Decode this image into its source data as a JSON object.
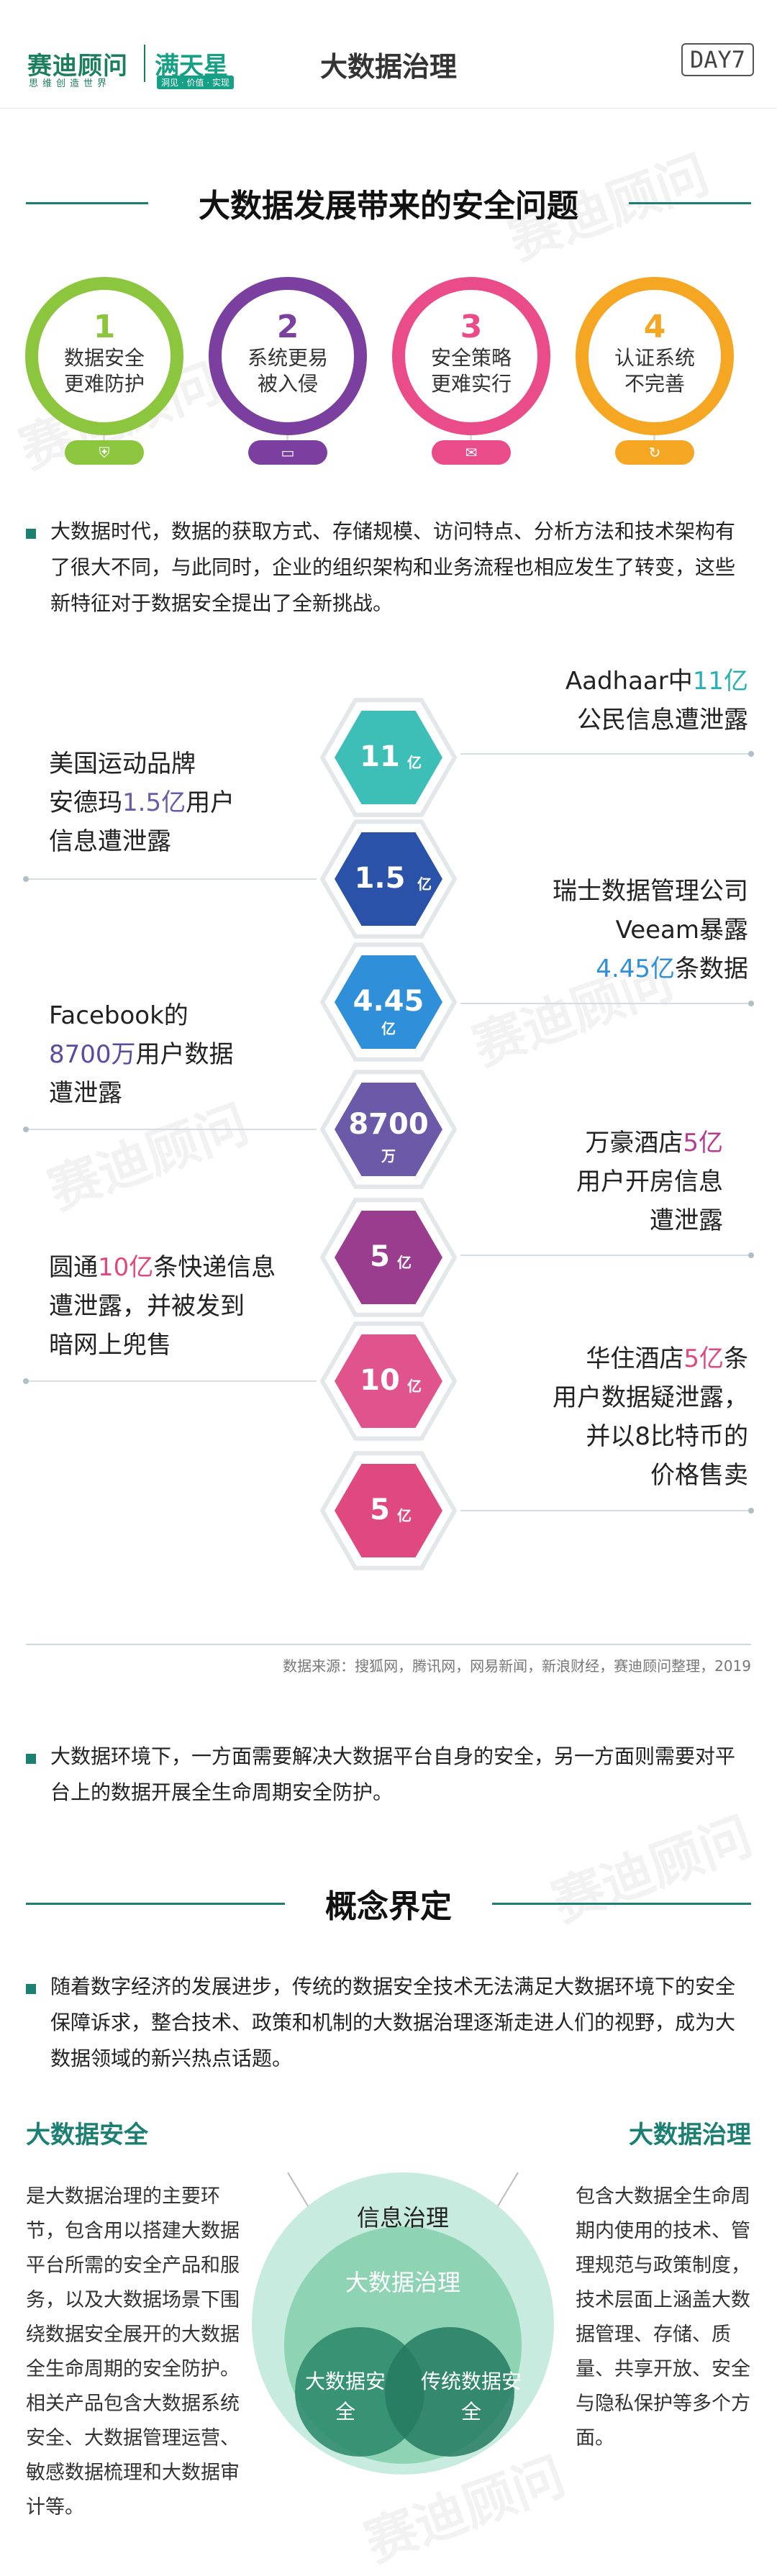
{
  "header": {
    "logo_main": "赛迪顾问",
    "logo_main_tagline": "思维创造世界",
    "logo_sub": "满天星",
    "logo_sub_tagline": "洞见 · 价值 · 实现",
    "title": "大数据治理",
    "day": "DAY7"
  },
  "section1": {
    "title": "大数据发展带来的安全问题",
    "issues": [
      {
        "num": "1",
        "line1": "数据安全",
        "line2": "更难防护",
        "color": "#8cc63f",
        "icon": "shield-icon"
      },
      {
        "num": "2",
        "line1": "系统更易",
        "line2": "被入侵",
        "color": "#7b3fa0",
        "icon": "monitor-icon"
      },
      {
        "num": "3",
        "line1": "安全策略",
        "line2": "更难实行",
        "color": "#ea4c89",
        "icon": "document-icon"
      },
      {
        "num": "4",
        "line1": "认证系统",
        "line2": "不完善",
        "color": "#f5a623",
        "icon": "refresh-icon"
      }
    ],
    "paragraph": "大数据时代，数据的获取方式、存储规模、访问特点、分析方法和技术架构有了很大不同，与此同时，企业的组织架构和业务流程也相应发生了转变，这些新特征对于数据安全提出了全新挑战。"
  },
  "stats": {
    "hexes": [
      {
        "value": "11",
        "unit": "亿",
        "color": "#3dbfb8"
      },
      {
        "value": "1.5",
        "unit": "亿",
        "color": "#2a52a8"
      },
      {
        "value": "4.45",
        "unit": "亿",
        "color": "#2f8fd8"
      },
      {
        "value": "8700",
        "unit": "万",
        "color": "#6a5aa8"
      },
      {
        "value": "5",
        "unit": "亿",
        "color": "#9b3d8e"
      },
      {
        "value": "10",
        "unit": "亿",
        "color": "#e0538c"
      },
      {
        "value": "5",
        "unit": "亿",
        "color": "#e0497f"
      }
    ],
    "items": {
      "aadhaar_1a": "Aadhaar中",
      "aadhaar_1b": "11亿",
      "aadhaar_2": "公民信息遭泄露",
      "ua_1": "美国运动品牌",
      "ua_2a": "安德玛",
      "ua_2b": "1.5亿",
      "ua_2c": "用户",
      "ua_3": "信息遭泄露",
      "veeam_1": "瑞士数据管理公司",
      "veeam_2": "Veeam暴露",
      "veeam_3a": "4.45亿",
      "veeam_3b": "条数据",
      "fb_1": "Facebook的",
      "fb_2a": "8700万",
      "fb_2b": "用户数据",
      "fb_3": "遭泄露",
      "marriott_1a": "万豪酒店",
      "marriott_1b": "5亿",
      "marriott_2": "用户开房信息",
      "marriott_3": "遭泄露",
      "yto_1a": "圆通",
      "yto_1b": "10亿",
      "yto_1c": "条快递信息",
      "yto_2": "遭泄露，并被发到",
      "yto_3": "暗网上兜售",
      "huazhu_1a": "华住酒店",
      "huazhu_1b": "5亿",
      "huazhu_1c": "条",
      "huazhu_2": "用户数据疑泄露，",
      "huazhu_3": "并以8比特币的",
      "huazhu_4": "价格售卖"
    },
    "source": "数据来源：搜狐网，腾讯网，网易新闻，新浪财经，赛迪顾问整理，2019"
  },
  "mid_paragraph": "大数据环境下，一方面需要解决大数据平台自身的安全，另一方面则需要对平台上的数据开展全生命周期安全防护。",
  "section2": {
    "title": "概念界定",
    "paragraph": "随着数字经济的发展进步，传统的数据安全技术无法满足大数据环境下的安全保障诉求，整合技术、政策和机制的大数据治理逐渐走进人们的视野，成为大数据领域的新兴热点话题。",
    "left_title": "大数据安全",
    "left_text": "是大数据治理的主要环节，包含用以搭建大数据平台所需的安全产品和服务，以及大数据场景下围绕数据安全展开的大数据全生命周期的安全防护。相关产品包含大数据系统安全、大数据管理运营、敏感数据梳理和大数据审计等。",
    "right_title": "大数据治理",
    "right_text": "包含大数据全生命周期内使用的技术、管理规范与政策制度，技术层面上涵盖大数据管理、存储、质量、共享开放、安全与隐私保护等多个方面。",
    "venn": {
      "outer": "信息治理",
      "middle": "大数据治理",
      "left": "大数据安全",
      "right": "传统数据安全"
    }
  },
  "watermark": "赛迪顾问",
  "colors": {
    "brand": "#1b7f72",
    "accent": "#2ab0b3"
  }
}
